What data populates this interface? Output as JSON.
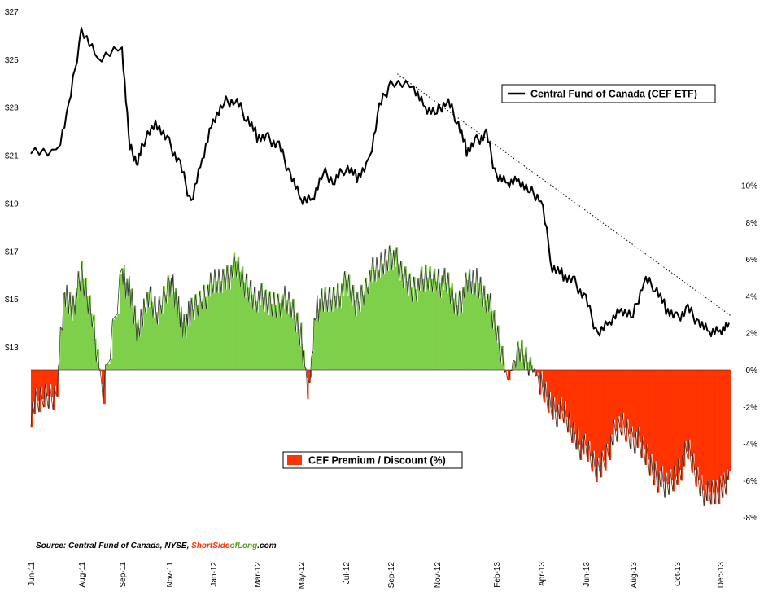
{
  "chart_data": {
    "type": "line",
    "colors": {
      "price_line": "#000000",
      "premium_fill": "#7ed04a",
      "discount_fill": "#ff3300",
      "trendline": "#000000"
    },
    "grid": false,
    "legend_placement": "top-right",
    "left_axis": {
      "ticks": [
        "$27",
        "$25",
        "$23",
        "$21",
        "$19",
        "$17",
        "$15",
        "$13"
      ],
      "range": [
        12,
        27
      ]
    },
    "right_axis": {
      "ticks": [
        "10%",
        "8%",
        "6%",
        "4%",
        "2%",
        "0%",
        "-2%",
        "-4%",
        "-6%",
        "-8%"
      ],
      "range": [
        -8.5,
        10
      ]
    },
    "x_axis": {
      "ticks": [
        "Jun-11",
        "Aug-11",
        "Sep-11",
        "Nov-11",
        "Jan-12",
        "Mar-12",
        "May-12",
        "Jul-12",
        "Sep-12",
        "Nov-12",
        "Feb-13",
        "Apr-13",
        "Jun-13",
        "Aug-13",
        "Oct-13",
        "Dec-13"
      ]
    },
    "series": [
      {
        "name": "Central Fund of Canada (CEF ETF)",
        "kind": "price",
        "points": [
          [
            "Jun-11",
            21.3
          ],
          [
            "Jul-11",
            21.0
          ],
          [
            "Jul-11",
            23.0
          ],
          [
            "Aug-11",
            26.2
          ],
          [
            "Aug-11",
            25.0
          ],
          [
            "Sep-11",
            25.5
          ],
          [
            "Sep-11",
            21.3
          ],
          [
            "Sep-11",
            20.7
          ],
          [
            "Oct-11",
            21.8
          ],
          [
            "Oct-11",
            22.3
          ],
          [
            "Nov-11",
            21.5
          ],
          [
            "Nov-11",
            20.6
          ],
          [
            "Dec-11",
            19.0
          ],
          [
            "Dec-11",
            20.8
          ],
          [
            "Jan-12",
            22.5
          ],
          [
            "Jan-12",
            23.2
          ],
          [
            "Feb-12",
            23.3
          ],
          [
            "Feb-12",
            22.6
          ],
          [
            "Mar-12",
            21.8
          ],
          [
            "Mar-12",
            21.7
          ],
          [
            "Apr-12",
            21.4
          ],
          [
            "Apr-12",
            20.2
          ],
          [
            "May-12",
            19.1
          ],
          [
            "May-12",
            19.2
          ],
          [
            "Jun-12",
            20.3
          ],
          [
            "Jun-12",
            19.9
          ],
          [
            "Jul-12",
            20.5
          ],
          [
            "Jul-12",
            20.1
          ],
          [
            "Aug-12",
            20.6
          ],
          [
            "Aug-12",
            23.0
          ],
          [
            "Sep-12",
            24.0
          ],
          [
            "Oct-12",
            23.8
          ],
          [
            "Oct-12",
            23.0
          ],
          [
            "Nov-12",
            22.8
          ],
          [
            "Nov-12",
            23.3
          ],
          [
            "Dec-12",
            22.5
          ],
          [
            "Dec-12",
            21.2
          ],
          [
            "Jan-13",
            21.6
          ],
          [
            "Jan-13",
            21.9
          ],
          [
            "Feb-13",
            20.1
          ],
          [
            "Feb-13",
            19.8
          ],
          [
            "Mar-13",
            20.0
          ],
          [
            "Mar-13",
            19.5
          ],
          [
            "Apr-13",
            19.2
          ],
          [
            "Apr-13",
            16.3
          ],
          [
            "May-13",
            16.0
          ],
          [
            "May-13",
            15.7
          ],
          [
            "Jun-13",
            15.0
          ],
          [
            "Jun-13",
            13.5
          ],
          [
            "Jul-13",
            14.0
          ],
          [
            "Jul-13",
            14.6
          ],
          [
            "Aug-13",
            14.3
          ],
          [
            "Aug-13",
            15.8
          ],
          [
            "Sep-13",
            15.5
          ],
          [
            "Sep-13",
            14.6
          ],
          [
            "Oct-13",
            14.2
          ],
          [
            "Oct-13",
            14.6
          ],
          [
            "Nov-13",
            14.0
          ],
          [
            "Nov-13",
            13.6
          ],
          [
            "Dec-13",
            13.7
          ],
          [
            "Dec-13",
            14.0
          ]
        ]
      },
      {
        "name": "CEF Premium / Discount (%)",
        "kind": "premium_discount",
        "points": [
          [
            "Jun-11",
            -2.2
          ],
          [
            "Jun-11",
            -1.5
          ],
          [
            "Jul-11",
            -1.2
          ],
          [
            "Jul-11",
            4.0
          ],
          [
            "Jul-11",
            3.5
          ],
          [
            "Aug-11",
            5.0
          ],
          [
            "Aug-11",
            3.0
          ],
          [
            "Aug-11",
            -1.5
          ],
          [
            "Sep-11",
            5.5
          ],
          [
            "Sep-11",
            4.0
          ],
          [
            "Sep-11",
            2.0
          ],
          [
            "Oct-11",
            4.0
          ],
          [
            "Oct-11",
            3.0
          ],
          [
            "Nov-11",
            5.0
          ],
          [
            "Nov-11",
            3.5
          ],
          [
            "Nov-11",
            2.5
          ],
          [
            "Dec-11",
            3.0
          ],
          [
            "Dec-11",
            4.0
          ],
          [
            "Jan-12",
            4.5
          ],
          [
            "Jan-12",
            5.0
          ],
          [
            "Feb-12",
            5.5
          ],
          [
            "Feb-12",
            4.5
          ],
          [
            "Mar-12",
            4.0
          ],
          [
            "Mar-12",
            3.5
          ],
          [
            "Apr-12",
            3.8
          ],
          [
            "Apr-12",
            3.5
          ],
          [
            "May-12",
            2.0
          ],
          [
            "May-12",
            -1.5
          ],
          [
            "May-12",
            3.5
          ],
          [
            "Jun-12",
            3.5
          ],
          [
            "Jun-12",
            4.0
          ],
          [
            "Jul-12",
            4.5
          ],
          [
            "Jul-12",
            3.5
          ],
          [
            "Aug-12",
            5.0
          ],
          [
            "Aug-12",
            5.5
          ],
          [
            "Sep-12",
            6.5
          ],
          [
            "Sep-12",
            5.0
          ],
          [
            "Oct-12",
            4.5
          ],
          [
            "Oct-12",
            4.8
          ],
          [
            "Nov-12",
            5.0
          ],
          [
            "Nov-12",
            4.5
          ],
          [
            "Dec-12",
            3.5
          ],
          [
            "Dec-12",
            4.5
          ],
          [
            "Jan-13",
            4.8
          ],
          [
            "Jan-13",
            4.0
          ],
          [
            "Feb-13",
            2.0
          ],
          [
            "Feb-13",
            -0.5
          ],
          [
            "Mar-13",
            1.0
          ],
          [
            "Mar-13",
            0.5
          ],
          [
            "Apr-13",
            -1.0
          ],
          [
            "Apr-13",
            -2.0
          ],
          [
            "May-13",
            -2.5
          ],
          [
            "May-13",
            -3.5
          ],
          [
            "Jun-13",
            -4.5
          ],
          [
            "Jun-13",
            -5.5
          ],
          [
            "Jul-13",
            -4.0
          ],
          [
            "Jul-13",
            -3.0
          ],
          [
            "Aug-13",
            -3.5
          ],
          [
            "Aug-13",
            -4.5
          ],
          [
            "Sep-13",
            -5.5
          ],
          [
            "Sep-13",
            -6.5
          ],
          [
            "Oct-13",
            -5.5
          ],
          [
            "Oct-13",
            -4.5
          ],
          [
            "Nov-13",
            -6.0
          ],
          [
            "Nov-13",
            -7.0
          ],
          [
            "Dec-13",
            -6.5
          ],
          [
            "Dec-13",
            -5.5
          ]
        ]
      }
    ],
    "trendline": {
      "style": "dotted",
      "from": [
        "Sep-12",
        24.0
      ],
      "to": [
        "Dec-13",
        13.6
      ]
    },
    "source_label": "Source: Central Fund of Canada, NYSE, ",
    "source_brand": {
      "part1": "Short",
      "part2": "Side",
      "part3": "of",
      "part4": "Long",
      "part5": ".com"
    },
    "brand_colors": {
      "red": "#ff3300",
      "green": "#5aa02c"
    }
  }
}
